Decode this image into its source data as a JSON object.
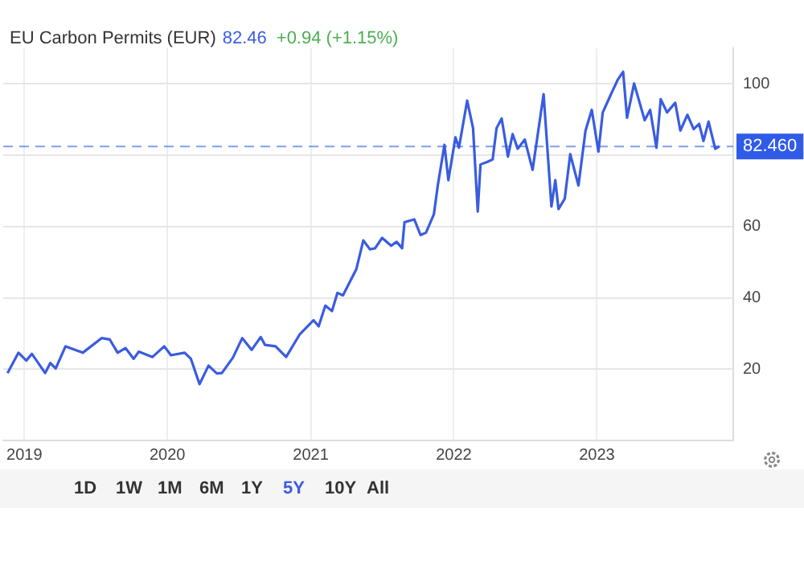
{
  "chart_data": {
    "type": "line",
    "title": "EU Carbon Permits (EUR)",
    "annotations": [
      "82.46",
      "+0.94 (+1.15%)",
      "1D",
      "1W",
      "1M",
      "6M",
      "1Y",
      "5Y",
      "10Y",
      "All"
    ],
    "x": [
      "2018-11-19",
      "2018-12-17",
      "2019-01-06",
      "2019-01-20",
      "2019-02-23",
      "2019-03-08",
      "2019-03-22",
      "2019-04-16",
      "2019-05-30",
      "2019-07-17",
      "2019-08-07",
      "2019-08-27",
      "2019-09-16",
      "2019-10-07",
      "2019-10-20",
      "2019-11-24",
      "2019-12-24",
      "2020-01-10",
      "2020-02-14",
      "2020-03-01",
      "2020-03-23",
      "2020-04-15",
      "2020-05-06",
      "2020-05-19",
      "2020-06-16",
      "2020-07-10",
      "2020-08-03",
      "2020-08-26",
      "2020-09-06",
      "2020-10-03",
      "2020-10-30",
      "2020-12-04",
      "2021-01-08",
      "2021-01-21",
      "2021-02-07",
      "2021-02-24",
      "2021-03-10",
      "2021-03-24",
      "2021-04-27",
      "2021-05-15",
      "2021-06-01",
      "2021-06-14",
      "2021-07-02",
      "2021-07-25",
      "2021-08-08",
      "2021-08-22",
      "2021-08-28",
      "2021-09-22",
      "2021-10-08",
      "2021-10-22",
      "2021-11-11",
      "2021-11-21",
      "2021-12-08",
      "2021-12-18",
      "2022-01-05",
      "2022-01-14",
      "2022-02-04",
      "2022-02-19",
      "2022-03-03",
      "2022-03-10",
      "2022-03-27",
      "2022-04-10",
      "2022-04-20",
      "2022-05-03",
      "2022-05-19",
      "2022-05-31",
      "2022-06-13",
      "2022-07-01",
      "2022-07-21",
      "2022-08-18",
      "2022-09-07",
      "2022-09-17",
      "2022-09-25",
      "2022-10-11",
      "2022-10-25",
      "2022-11-15",
      "2022-12-03",
      "2022-12-19",
      "2023-01-05",
      "2023-01-16",
      "2023-02-06",
      "2023-02-23",
      "2023-03-09",
      "2023-03-19",
      "2023-04-06",
      "2023-05-03",
      "2023-05-17",
      "2023-06-02",
      "2023-06-13",
      "2023-06-29",
      "2023-07-20",
      "2023-08-02",
      "2023-08-20",
      "2023-09-05",
      "2023-09-19",
      "2023-09-30",
      "2023-10-13",
      "2023-10-30",
      "2023-11-09"
    ],
    "series": [
      {
        "color": "#3a5ce0",
        "values": [
          18.9,
          24.6,
          22.4,
          24.3,
          18.9,
          21.7,
          20.2,
          26.4,
          24.6,
          28.7,
          28.3,
          24.6,
          25.9,
          22.9,
          24.9,
          23.4,
          26.4,
          23.9,
          24.6,
          22.9,
          15.8,
          21.0,
          18.8,
          18.9,
          23.2,
          28.7,
          25.4,
          29.0,
          26.8,
          26.4,
          23.4,
          29.8,
          33.7,
          32.0,
          37.8,
          36.3,
          41.4,
          40.7,
          48.0,
          56.1,
          53.6,
          53.9,
          56.8,
          54.6,
          55.7,
          53.9,
          61.2,
          62.0,
          57.6,
          58.3,
          63.4,
          71.5,
          82.9,
          73.0,
          85.0,
          82.1,
          95.3,
          87.6,
          64.2,
          77.4,
          78.1,
          78.8,
          87.6,
          90.3,
          79.6,
          85.9,
          81.8,
          84.4,
          75.9,
          97.1,
          65.6,
          73.0,
          64.9,
          67.8,
          80.3,
          71.5,
          86.9,
          92.7,
          81.0,
          92.0,
          97.1,
          101.1,
          103.4,
          90.5,
          100.1,
          89.8,
          92.7,
          82.1,
          95.7,
          92.0,
          94.7,
          86.9,
          91.3,
          87.3,
          88.8,
          84.0,
          89.4,
          81.8,
          82.46
        ]
      }
    ],
    "xlim": [
      "2018-11-08",
      "2023-12-15"
    ],
    "xticks": [
      "2019",
      "2020",
      "2021",
      "2022",
      "2023"
    ],
    "ylim": [
      0,
      110
    ],
    "yticks": [
      20,
      40,
      60,
      {
        "value": 80,
        "label": null
      },
      100
    ],
    "ref_lines": [
      {
        "axis": "y",
        "value": 82.46,
        "label": "82.460",
        "color": "#2f5be8",
        "line_style": "dashed"
      }
    ],
    "grid": true,
    "legend": false,
    "marker": "none",
    "line_style": "solid"
  }
}
